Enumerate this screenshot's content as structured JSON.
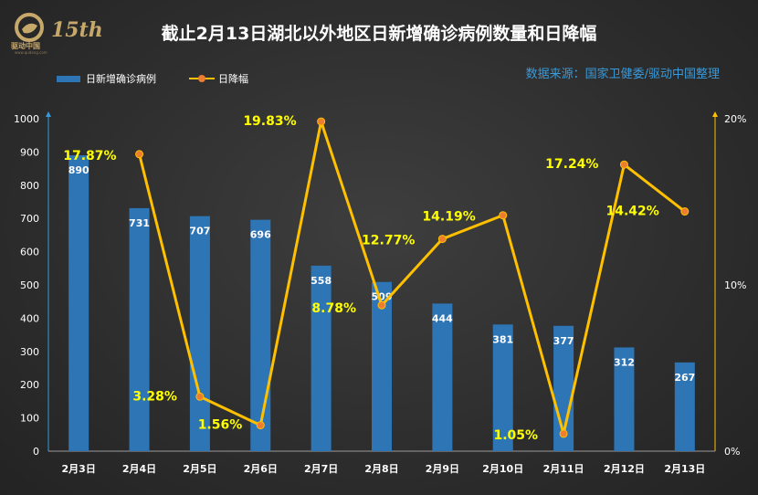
{
  "logo": {
    "brand_text": "驱动中国",
    "anniversary": "15th",
    "site": "www.qudong.com"
  },
  "title": "截止2月13日湖北以外地区日新增确诊病例数量和日降幅",
  "source": "数据来源：国家卫健委/驱动中国整理",
  "colors": {
    "bar": "#2e75b6",
    "line": "#ffc000",
    "marker": "#ed7d31",
    "label_line": "#ffff00",
    "axis_text": "#ffffff",
    "right_axis": "#ffc000",
    "source": "#3a9ad9"
  },
  "chart_data": {
    "type": "bar",
    "categories": [
      "2月3日",
      "2月4日",
      "2月5日",
      "2月6日",
      "2月7日",
      "2月8日",
      "2月9日",
      "2月10日",
      "2月11日",
      "2月12日",
      "2月13日"
    ],
    "series": [
      {
        "name": "日新增确诊病例",
        "type": "bar",
        "axis": "left",
        "values": [
          890,
          731,
          707,
          696,
          558,
          509,
          444,
          381,
          377,
          312,
          267
        ],
        "labels": [
          "890",
          "731",
          "707",
          "696",
          "558",
          "509",
          "444",
          "381",
          "377",
          "312",
          "267"
        ]
      },
      {
        "name": "日降幅",
        "type": "line",
        "axis": "right",
        "values": [
          null,
          17.87,
          3.28,
          1.56,
          19.83,
          8.78,
          12.77,
          14.19,
          1.05,
          17.24,
          14.42
        ],
        "labels": [
          "",
          "17.87%",
          "3.28%",
          "1.56%",
          "19.83%",
          "8.78%",
          "12.77%",
          "14.19%",
          "1.05%",
          "17.24%",
          "14.42%"
        ]
      }
    ],
    "left_axis": {
      "ylim": [
        0,
        1000
      ],
      "ticks": [
        "0",
        "100",
        "200",
        "300",
        "400",
        "500",
        "600",
        "700",
        "800",
        "900",
        "1000"
      ]
    },
    "right_axis": {
      "ylim": [
        0,
        20
      ],
      "ticks": [
        "0%",
        "10%",
        "20%"
      ]
    },
    "grid": false,
    "legend": "top-left"
  }
}
